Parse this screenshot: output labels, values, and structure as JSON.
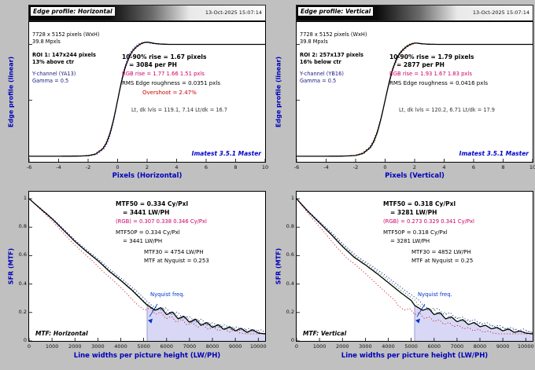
{
  "brand": "Imatest 3.5.1 Master",
  "colors": {
    "figure_bg": "#c0c0c0",
    "axis_label_blue": "#0000bb",
    "rgb_text_magenta": "#cc0066",
    "overshoot_red": "#d00000",
    "brand_blue": "#0000cc",
    "nyquist_fill": "#d8d8f6"
  },
  "panels": {
    "edge_h": {
      "title": "Edge profile: Horizontal",
      "timestamp": "13-Oct-2025 15:07:14",
      "info": [
        "7728 x 5152 pixels (WxH)",
        "39.8 Mpxls"
      ],
      "roi": [
        "ROI 1: 147x244 pixels",
        "13% above ctr"
      ],
      "channel": [
        "Y-channel (YA13)",
        "Gamma = 0.5"
      ],
      "stats": {
        "rise": "10-90% rise = 1.67 pixels",
        "rise_ph": "= 3084 per PH",
        "rgb_rise": "RGB rise = 1.77  1.66  1.51 pxls",
        "rms": "RMS Edge roughness = 0.0351 pxls",
        "overshoot": "Overshoot = 2.47%",
        "levels": "Lt, dk lvls = 119.1, 7.14   Lt/dk = 16.7"
      },
      "xlabel": "Pixels (Horizontal)",
      "ylabel": "Edge profile (linear)"
    },
    "edge_v": {
      "title": "Edge profile: Vertical",
      "timestamp": "13-Oct-2025 15:07:14",
      "info": [
        "7728 x 5152 pixels (WxH)",
        "39.8 Mpxls"
      ],
      "roi": [
        "ROI 2: 257x137 pixels",
        "16% below ctr"
      ],
      "channel": [
        "Y-channel (YB16)",
        "Gamma = 0.5"
      ],
      "stats": {
        "rise": "10-90% rise = 1.79 pixels",
        "rise_ph": "= 2877 per PH",
        "rgb_rise": "RGB rise = 1.93  1.67  1.83 pxls",
        "rms": "RMS Edge roughness = 0.0416 pxls",
        "levels": "Lt, dk lvls = 120.2, 6.71   Lt/dk = 17.9"
      },
      "xlabel": "Pixels (Vertical)",
      "ylabel": "Edge profile (linear)"
    },
    "mtf_h": {
      "stats": {
        "mtf50": "MTF50 = 0.334 Cy/Pxl",
        "mtf50_ph": "= 3441 LW/PH",
        "rgb": "(RGB) = 0.307  0.338  0.346 Cy/Pxl",
        "mtf50p": "MTF50P = 0.334 Cy/Pxl",
        "mtf50p_ph": "= 3441 LW/PH",
        "mtf30": "MTF30 = 4754 LW/PH",
        "nyquist": "MTF at Nyquist = 0.253"
      },
      "nyquist_label": "Nyquist freq.",
      "corner": "MTF: Horizontal",
      "xlabel": "Line widths per picture height (LW/PH)",
      "ylabel": "SFR (MTF)"
    },
    "mtf_v": {
      "stats": {
        "mtf50": "MTF50 = 0.318 Cy/Pxl",
        "mtf50_ph": "= 3281 LW/PH",
        "rgb": "(RGB) = 0.273  0.329  0.341 Cy/Pxl",
        "mtf50p": "MTF50P = 0.318 Cy/Pxl",
        "mtf50p_ph": "= 3281 LW/PH",
        "mtf30": "MTF30 = 4852 LW/PH",
        "nyquist": "MTF at Nyquist = 0.25"
      },
      "nyquist_label": "Nyquist freq.",
      "corner": "MTF: Vertical",
      "xlabel": "Line widths per picture height (LW/PH)",
      "ylabel": "SFR (MTF)"
    }
  },
  "chart_data": [
    {
      "id": "edge_h",
      "type": "line",
      "title": "Edge profile: Horizontal",
      "xlabel": "Pixels (Horizontal)",
      "ylabel": "Edge profile (linear)",
      "xlim": [
        -6,
        10
      ],
      "ylim": [
        -0.05,
        1.2
      ],
      "xticks": [
        -6,
        -4,
        -2,
        0,
        2,
        4,
        6,
        8,
        10
      ],
      "yticks": [
        0,
        0.5,
        1
      ],
      "rise_10_90_pixels": 1.67,
      "rise_per_ph": 3084,
      "overshoot_pct": 2.47,
      "rgb_rise_pixels": [
        1.77,
        1.66,
        1.51
      ],
      "rgb_scales": [
        1.06,
        0.994,
        0.904
      ],
      "x": [
        -6,
        -5,
        -4,
        -3,
        -2.5,
        -2,
        -1.5,
        -1,
        -0.75,
        -0.5,
        -0.25,
        0,
        0.25,
        0.5,
        0.75,
        1,
        1.25,
        1.5,
        1.75,
        2,
        2.25,
        2.5,
        3,
        3.5,
        4,
        5,
        6,
        7,
        8,
        9,
        10
      ],
      "y": [
        0,
        0,
        0,
        0.001,
        0.002,
        0.005,
        0.019,
        0.067,
        0.12,
        0.21,
        0.34,
        0.5,
        0.66,
        0.79,
        0.878,
        0.94,
        0.975,
        1.0,
        1.015,
        1.02,
        1.015,
        1.008,
        1.002,
        1.0,
        1.0,
        1.0,
        1.0,
        1.0,
        1.0,
        1.0,
        1.0
      ]
    },
    {
      "id": "edge_v",
      "type": "line",
      "title": "Edge profile: Vertical",
      "xlabel": "Pixels (Vertical)",
      "ylabel": "Edge profile (linear)",
      "xlim": [
        -6,
        10
      ],
      "ylim": [
        -0.05,
        1.2
      ],
      "xticks": [
        -6,
        -4,
        -2,
        0,
        2,
        4,
        6,
        8,
        10
      ],
      "yticks": [
        0,
        0.5,
        1
      ],
      "rise_10_90_pixels": 1.79,
      "rise_per_ph": 2877,
      "rgb_rise_pixels": [
        1.93,
        1.67,
        1.83
      ],
      "rgb_scales": [
        1.078,
        0.933,
        1.022
      ],
      "x": [
        -6,
        -5,
        -4,
        -3,
        -2.5,
        -2,
        -1.5,
        -1,
        -0.75,
        -0.5,
        -0.25,
        0,
        0.25,
        0.5,
        0.75,
        1,
        1.25,
        1.5,
        1.75,
        2,
        2.25,
        2.5,
        3,
        3.5,
        4,
        5,
        6,
        7,
        8,
        9,
        10
      ],
      "y": [
        0,
        0,
        0,
        0.001,
        0.003,
        0.007,
        0.025,
        0.079,
        0.137,
        0.226,
        0.352,
        0.5,
        0.648,
        0.774,
        0.863,
        0.921,
        0.957,
        0.985,
        1.002,
        1.012,
        1.01,
        1.005,
        1.001,
        1.0,
        1.0,
        1.0,
        1.0,
        1.0,
        1.0,
        1.0,
        1.0
      ]
    },
    {
      "id": "mtf_h",
      "type": "line",
      "title": "MTF: Horizontal",
      "xlabel": "Line widths per picture height (LW/PH)",
      "ylabel": "SFR (MTF)",
      "xlim": [
        0,
        10300
      ],
      "ylim": [
        0,
        1.05
      ],
      "xticks": [
        0,
        1000,
        2000,
        3000,
        4000,
        5000,
        6000,
        7000,
        8000,
        9000,
        10000
      ],
      "yticks": [
        0,
        0.2,
        0.4,
        0.6,
        0.8,
        1
      ],
      "nyquist": 5151,
      "mtf50_cypx": 0.334,
      "mtf50_lwph": 3441,
      "mtf50p_lwph": 3441,
      "mtf30_lwph": 4754,
      "mtf_at_nyquist": 0.253,
      "rgb_mtf50_cypx": [
        0.307,
        0.338,
        0.346
      ],
      "rgb_scales": [
        0.919,
        1.012,
        1.036
      ],
      "x": [
        0,
        500,
        1000,
        1500,
        2000,
        2500,
        3000,
        3500,
        4000,
        4500,
        5000,
        5151,
        5500,
        5750,
        6000,
        6250,
        6500,
        6750,
        7000,
        7250,
        7500,
        7750,
        8000,
        8250,
        8500,
        8750,
        9000,
        9250,
        9500,
        9750,
        10000,
        10300
      ],
      "y": [
        1.0,
        0.93,
        0.86,
        0.78,
        0.7,
        0.63,
        0.565,
        0.49,
        0.425,
        0.355,
        0.275,
        0.253,
        0.215,
        0.235,
        0.185,
        0.205,
        0.155,
        0.175,
        0.13,
        0.155,
        0.11,
        0.13,
        0.095,
        0.115,
        0.08,
        0.1,
        0.07,
        0.09,
        0.06,
        0.08,
        0.055,
        0.05
      ]
    },
    {
      "id": "mtf_v",
      "type": "line",
      "title": "MTF: Vertical",
      "xlabel": "Line widths per picture height (LW/PH)",
      "ylabel": "SFR (MTF)",
      "xlim": [
        0,
        10300
      ],
      "ylim": [
        0,
        1.05
      ],
      "xticks": [
        0,
        1000,
        2000,
        3000,
        4000,
        5000,
        6000,
        7000,
        8000,
        9000,
        10000
      ],
      "yticks": [
        0,
        0.2,
        0.4,
        0.6,
        0.8,
        1
      ],
      "nyquist": 5151,
      "mtf50_cypx": 0.318,
      "mtf50_lwph": 3281,
      "mtf50p_lwph": 3281,
      "mtf30_lwph": 4852,
      "mtf_at_nyquist": 0.25,
      "rgb_mtf50_cypx": [
        0.273,
        0.329,
        0.341
      ],
      "rgb_scales": [
        0.858,
        1.035,
        1.072
      ],
      "x": [
        0,
        500,
        1000,
        1500,
        2000,
        2500,
        3000,
        3500,
        4000,
        4500,
        5000,
        5151,
        5500,
        5750,
        6000,
        6250,
        6500,
        6750,
        7000,
        7250,
        7500,
        7750,
        8000,
        8250,
        8500,
        8750,
        9000,
        9250,
        9500,
        9750,
        10000,
        10300
      ],
      "y": [
        1.0,
        0.91,
        0.83,
        0.75,
        0.665,
        0.59,
        0.535,
        0.475,
        0.41,
        0.345,
        0.285,
        0.25,
        0.215,
        0.23,
        0.185,
        0.2,
        0.155,
        0.17,
        0.135,
        0.15,
        0.115,
        0.13,
        0.1,
        0.11,
        0.085,
        0.095,
        0.07,
        0.085,
        0.06,
        0.07,
        0.055,
        0.05
      ]
    }
  ]
}
